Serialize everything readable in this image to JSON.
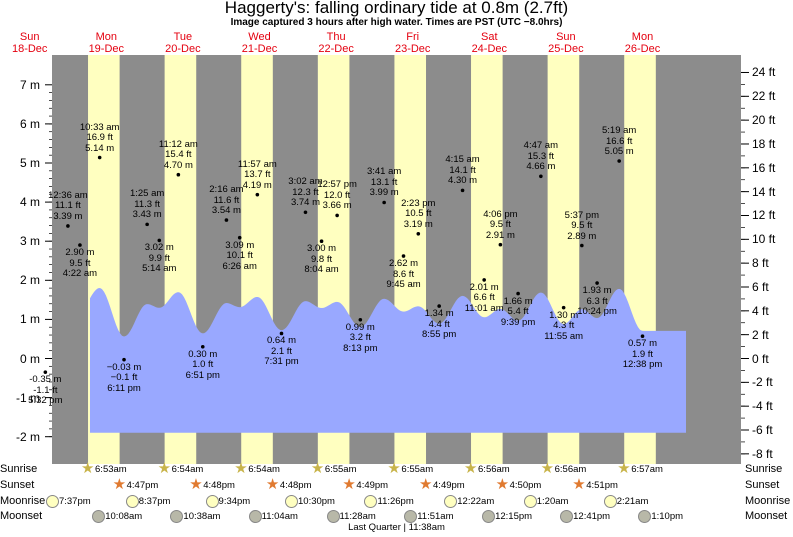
{
  "title": "Haggerty's: falling  ordinary tide at 0.8m (2.7ft)",
  "subtitle": "Image captured 3 hours after high water. Times are PST (UTC −8.0hrs)",
  "days": [
    {
      "dow": "Sun",
      "date": "18-Dec"
    },
    {
      "dow": "Mon",
      "date": "19-Dec"
    },
    {
      "dow": "Tue",
      "date": "20-Dec"
    },
    {
      "dow": "Wed",
      "date": "21-Dec"
    },
    {
      "dow": "Thu",
      "date": "22-Dec"
    },
    {
      "dow": "Fri",
      "date": "23-Dec"
    },
    {
      "dow": "Sat",
      "date": "24-Dec"
    },
    {
      "dow": "Sun",
      "date": "25-Dec"
    },
    {
      "dow": "Mon",
      "date": "26-Dec"
    }
  ],
  "chart_data": {
    "type": "area",
    "left_axis": {
      "unit": "m",
      "range": [
        -2.2,
        7.5
      ],
      "ticks": [
        "-2 m",
        "-1 m",
        "0 m",
        "1 m",
        "2 m",
        "3 m",
        "4 m",
        "5 m",
        "6 m",
        "7 m"
      ]
    },
    "right_axis": {
      "unit": "ft",
      "ticks": [
        "-8 ft",
        "-6 ft",
        "-4 ft",
        "-2 ft",
        "0 ft",
        "2 ft",
        "4 ft",
        "6 ft",
        "8 ft",
        "10 ft",
        "12 ft",
        "14 ft",
        "16 ft",
        "18 ft",
        "20 ft",
        "22 ft",
        "24 ft"
      ]
    },
    "tides": [
      {
        "time": "5:32 pm",
        "m": "-0.35 m",
        "ft": "-1.1 ft",
        "day": 0,
        "hour": 17.53,
        "value": -0.35,
        "type": "low"
      },
      {
        "time": "12:36 am",
        "m": "3.39 m",
        "ft": "11.1 ft",
        "day": 1,
        "hour": 0.6,
        "value": 3.39,
        "type": "high"
      },
      {
        "time": "4:22 am",
        "m": "2.90 m",
        "ft": "9.5 ft",
        "day": 1,
        "hour": 4.37,
        "value": 2.9,
        "type": "low"
      },
      {
        "time": "10:33 am",
        "m": "5.14 m",
        "ft": "16.9 ft",
        "day": 1,
        "hour": 10.55,
        "value": 5.14,
        "type": "high"
      },
      {
        "time": "6:11 pm",
        "m": "−0.03 m",
        "ft": "−0.1 ft",
        "day": 1,
        "hour": 18.18,
        "value": -0.03,
        "type": "low"
      },
      {
        "time": "1:25 am",
        "m": "3.43 m",
        "ft": "11.3 ft",
        "day": 2,
        "hour": 1.42,
        "value": 3.43,
        "type": "high"
      },
      {
        "time": "5:14 am",
        "m": "3.02 m",
        "ft": "9.9 ft",
        "day": 2,
        "hour": 5.23,
        "value": 3.02,
        "type": "low"
      },
      {
        "time": "11:12 am",
        "m": "4.70 m",
        "ft": "15.4 ft",
        "day": 2,
        "hour": 11.2,
        "value": 4.7,
        "type": "high"
      },
      {
        "time": "6:51 pm",
        "m": "0.30 m",
        "ft": "1.0 ft",
        "day": 2,
        "hour": 18.85,
        "value": 0.3,
        "type": "low"
      },
      {
        "time": "2:16 am",
        "m": "3.54 m",
        "ft": "11.6 ft",
        "day": 3,
        "hour": 2.27,
        "value": 3.54,
        "type": "high"
      },
      {
        "time": "6:26 am",
        "m": "3.09 m",
        "ft": "10.1 ft",
        "day": 3,
        "hour": 6.43,
        "value": 3.09,
        "type": "low"
      },
      {
        "time": "11:57 am",
        "m": "4.19 m",
        "ft": "13.7 ft",
        "day": 3,
        "hour": 11.95,
        "value": 4.19,
        "type": "high"
      },
      {
        "time": "7:31 pm",
        "m": "0.64 m",
        "ft": "2.1 ft",
        "day": 3,
        "hour": 19.52,
        "value": 0.64,
        "type": "low"
      },
      {
        "time": "3:02 am",
        "m": "3.74 m",
        "ft": "12.3 ft",
        "day": 4,
        "hour": 3.03,
        "value": 3.74,
        "type": "high"
      },
      {
        "time": "8:04 am",
        "m": "3.00 m",
        "ft": "9.8 ft",
        "day": 4,
        "hour": 8.07,
        "value": 3.0,
        "type": "low"
      },
      {
        "time": "12:57 pm",
        "m": "3.66 m",
        "ft": "12.0 ft",
        "day": 4,
        "hour": 12.95,
        "value": 3.66,
        "type": "high"
      },
      {
        "time": "8:13 pm",
        "m": "0.99 m",
        "ft": "3.2 ft",
        "day": 4,
        "hour": 20.22,
        "value": 0.99,
        "type": "low"
      },
      {
        "time": "3:41 am",
        "m": "3.99 m",
        "ft": "13.1 ft",
        "day": 5,
        "hour": 3.68,
        "value": 3.99,
        "type": "high"
      },
      {
        "time": "9:45 am",
        "m": "2.62 m",
        "ft": "8.6 ft",
        "day": 5,
        "hour": 9.75,
        "value": 2.62,
        "type": "low"
      },
      {
        "time": "2:23 pm",
        "m": "3.19 m",
        "ft": "10.5 ft",
        "day": 5,
        "hour": 14.38,
        "value": 3.19,
        "type": "high"
      },
      {
        "time": "8:55 pm",
        "m": "1.34 m",
        "ft": "4.4 ft",
        "day": 5,
        "hour": 20.92,
        "value": 1.34,
        "type": "low"
      },
      {
        "time": "4:15 am",
        "m": "4.30 m",
        "ft": "14.1 ft",
        "day": 6,
        "hour": 4.25,
        "value": 4.3,
        "type": "high"
      },
      {
        "time": "11:01 am",
        "m": "2.01 m",
        "ft": "6.6 ft",
        "day": 6,
        "hour": 11.02,
        "value": 2.01,
        "type": "low"
      },
      {
        "time": "4:06 pm",
        "m": "2.91 m",
        "ft": "9.5 ft",
        "day": 6,
        "hour": 16.1,
        "value": 2.91,
        "type": "high"
      },
      {
        "time": "9:39 pm",
        "m": "1.66 m",
        "ft": "5.4 ft",
        "day": 6,
        "hour": 21.65,
        "value": 1.66,
        "type": "low"
      },
      {
        "time": "4:47 am",
        "m": "4.66 m",
        "ft": "15.3 ft",
        "day": 7,
        "hour": 4.78,
        "value": 4.66,
        "type": "high"
      },
      {
        "time": "11:55 am",
        "m": "1.30 m",
        "ft": "4.3 ft",
        "day": 7,
        "hour": 11.92,
        "value": 1.3,
        "type": "low"
      },
      {
        "time": "5:37 pm",
        "m": "2.89 m",
        "ft": "9.5 ft",
        "day": 7,
        "hour": 17.62,
        "value": 2.89,
        "type": "high"
      },
      {
        "time": "10:24 pm",
        "m": "1.93 m",
        "ft": "6.3 ft",
        "day": 7,
        "hour": 22.4,
        "value": 1.93,
        "type": "low"
      },
      {
        "time": "5:19 am",
        "m": "5.05 m",
        "ft": "16.6 ft",
        "day": 8,
        "hour": 5.32,
        "value": 5.05,
        "type": "high"
      },
      {
        "time": "12:38 pm",
        "m": "0.57 m",
        "ft": "1.9 ft",
        "day": 8,
        "hour": 12.63,
        "value": 0.57,
        "type": "low"
      }
    ],
    "current_level_m": 0.8,
    "colors": {
      "night": "#8c8c8c",
      "day": "#ffffc0",
      "water": "#99a8ff",
      "text": "#000000",
      "day_header": "#e4000f"
    }
  },
  "sunrise": {
    "label": "Sunrise",
    "times": [
      "6:53am",
      "6:54am",
      "6:54am",
      "6:55am",
      "6:55am",
      "6:56am",
      "6:56am",
      "6:57am"
    ]
  },
  "sunset": {
    "label": "Sunset",
    "times": [
      "4:47pm",
      "4:48pm",
      "4:48pm",
      "4:49pm",
      "4:49pm",
      "4:50pm",
      "4:51pm"
    ]
  },
  "moonrise": {
    "label": "Moonrise",
    "times": [
      "7:37pm",
      "8:37pm",
      "9:34pm",
      "10:30pm",
      "11:26pm",
      "12:22am",
      "1:20am",
      "2:21am"
    ]
  },
  "moonset": {
    "label": "Moonset",
    "times": [
      "10:08am",
      "10:38am",
      "11:04am",
      "11:28am",
      "11:51am",
      "12:15pm",
      "12:41pm",
      "1:10pm"
    ]
  },
  "phase": "Last Quarter | 11:38am"
}
